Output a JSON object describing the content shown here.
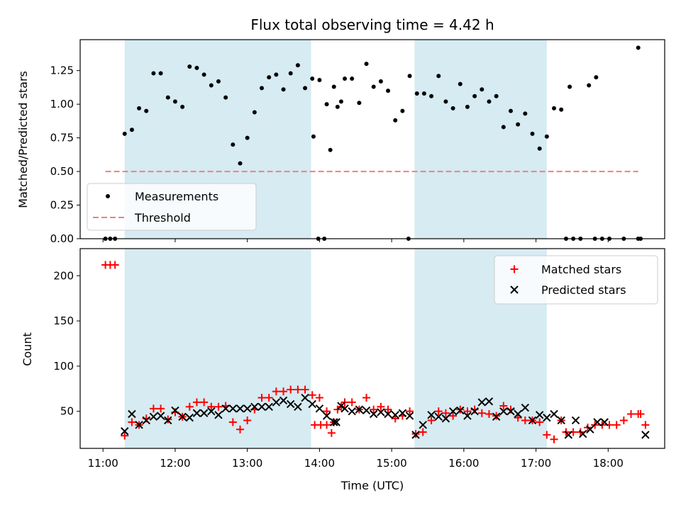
{
  "chart_data": [
    {
      "type": "scatter",
      "title": "Flux total observing time = 4.42 h",
      "xlabel": "",
      "ylabel": "Matched/Predicted stars",
      "xlim": [
        "10:41",
        "18:47"
      ],
      "ylim": [
        0,
        1.48
      ],
      "xticks": [
        "11:00",
        "12:00",
        "13:00",
        "14:00",
        "15:00",
        "16:00",
        "17:00",
        "18:00"
      ],
      "yticks": [
        "0.00",
        "0.25",
        "0.50",
        "0.75",
        "1.00",
        "1.25"
      ],
      "yticks_values": [
        0,
        0.25,
        0.5,
        0.75,
        1.0,
        1.25
      ],
      "grid": false,
      "legend_position": "lower-left",
      "shaded_intervals": [
        [
          "11:18",
          "13:53"
        ],
        [
          "15:19",
          "17:09"
        ]
      ],
      "threshold": {
        "name": "Threshold",
        "value": 0.5,
        "x_range": [
          "11:02",
          "18:25"
        ],
        "color": "#f08080"
      },
      "series": [
        {
          "name": "Measurements",
          "color": "#000000",
          "points": [
            [
              "11:02",
              0
            ],
            [
              "11:06",
              0
            ],
            [
              "11:10",
              0
            ],
            [
              "11:18",
              0.78
            ],
            [
              "11:24",
              0.81
            ],
            [
              "11:30",
              0.97
            ],
            [
              "11:36",
              0.95
            ],
            [
              "11:42",
              1.23
            ],
            [
              "11:48",
              1.23
            ],
            [
              "11:54",
              1.05
            ],
            [
              "12:00",
              1.02
            ],
            [
              "12:06",
              0.98
            ],
            [
              "12:12",
              1.28
            ],
            [
              "12:18",
              1.27
            ],
            [
              "12:24",
              1.22
            ],
            [
              "12:30",
              1.14
            ],
            [
              "12:36",
              1.17
            ],
            [
              "12:42",
              1.05
            ],
            [
              "12:48",
              0.7
            ],
            [
              "12:54",
              0.56
            ],
            [
              "13:00",
              0.75
            ],
            [
              "13:06",
              0.94
            ],
            [
              "13:12",
              1.12
            ],
            [
              "13:18",
              1.2
            ],
            [
              "13:24",
              1.22
            ],
            [
              "13:30",
              1.11
            ],
            [
              "13:36",
              1.23
            ],
            [
              "13:42",
              1.29
            ],
            [
              "13:48",
              1.12
            ],
            [
              "13:54",
              1.19
            ],
            [
              "14:00",
              1.18
            ],
            [
              "14:06",
              1.0
            ],
            [
              "14:12",
              1.13
            ],
            [
              "14:18",
              1.02
            ],
            [
              "13:55",
              0.76
            ],
            [
              "13:59",
              0
            ],
            [
              "14:04",
              0
            ],
            [
              "14:09",
              0.66
            ],
            [
              "14:15",
              0.98
            ],
            [
              "14:21",
              1.19
            ],
            [
              "14:27",
              1.19
            ],
            [
              "14:33",
              1.01
            ],
            [
              "14:39",
              1.3
            ],
            [
              "14:45",
              1.13
            ],
            [
              "14:51",
              1.17
            ],
            [
              "14:57",
              1.1
            ],
            [
              "15:03",
              0.88
            ],
            [
              "15:09",
              0.95
            ],
            [
              "15:15",
              1.21
            ],
            [
              "15:21",
              1.08
            ],
            [
              "15:14",
              0
            ],
            [
              "15:27",
              1.08
            ],
            [
              "15:33",
              1.06
            ],
            [
              "15:39",
              1.21
            ],
            [
              "15:45",
              1.02
            ],
            [
              "15:51",
              0.97
            ],
            [
              "15:57",
              1.15
            ],
            [
              "16:03",
              0.98
            ],
            [
              "16:09",
              1.06
            ],
            [
              "16:15",
              1.11
            ],
            [
              "16:21",
              1.02
            ],
            [
              "16:27",
              1.06
            ],
            [
              "16:33",
              0.83
            ],
            [
              "16:39",
              0.95
            ],
            [
              "16:45",
              0.85
            ],
            [
              "16:51",
              0.93
            ],
            [
              "16:57",
              0.78
            ],
            [
              "17:03",
              0.67
            ],
            [
              "17:09",
              0.76
            ],
            [
              "17:15",
              0.97
            ],
            [
              "17:21",
              0.96
            ],
            [
              "17:25",
              0
            ],
            [
              "17:31",
              0
            ],
            [
              "17:37",
              0
            ],
            [
              "17:49",
              0
            ],
            [
              "17:55",
              0
            ],
            [
              "18:01",
              0
            ],
            [
              "18:13",
              0
            ],
            [
              "18:25",
              0
            ],
            [
              "18:27",
              0
            ],
            [
              "17:28",
              1.13
            ],
            [
              "17:44",
              1.14
            ],
            [
              "17:50",
              1.2
            ],
            [
              "18:25",
              1.42
            ]
          ]
        }
      ]
    },
    {
      "type": "scatter",
      "title": "",
      "xlabel": "Time (UTC)",
      "ylabel": "Count",
      "xlim": [
        "10:41",
        "18:47"
      ],
      "ylim": [
        9,
        230
      ],
      "xticks": [
        "11:00",
        "12:00",
        "13:00",
        "14:00",
        "15:00",
        "16:00",
        "17:00",
        "18:00"
      ],
      "yticks": [
        "50",
        "100",
        "150",
        "200"
      ],
      "yticks_values": [
        50,
        100,
        150,
        200
      ],
      "grid": false,
      "legend_position": "upper-right",
      "shaded_intervals": [
        [
          "11:18",
          "13:53"
        ],
        [
          "15:19",
          "17:09"
        ]
      ],
      "series": [
        {
          "name": "Matched stars",
          "color": "#ff0000",
          "marker": "plus",
          "points": [
            [
              "11:02",
              212
            ],
            [
              "11:06",
              212
            ],
            [
              "11:10",
              212
            ],
            [
              "11:18",
              23
            ],
            [
              "11:24",
              38
            ],
            [
              "11:30",
              35
            ],
            [
              "11:36",
              42
            ],
            [
              "11:42",
              53
            ],
            [
              "11:48",
              53
            ],
            [
              "11:54",
              41
            ],
            [
              "12:00",
              49
            ],
            [
              "12:06",
              44
            ],
            [
              "12:12",
              55
            ],
            [
              "12:18",
              60
            ],
            [
              "12:24",
              60
            ],
            [
              "12:30",
              55
            ],
            [
              "12:36",
              55
            ],
            [
              "12:42",
              56
            ],
            [
              "12:48",
              38
            ],
            [
              "12:54",
              30
            ],
            [
              "13:00",
              40
            ],
            [
              "13:06",
              52
            ],
            [
              "13:12",
              65
            ],
            [
              "13:18",
              65
            ],
            [
              "13:24",
              72
            ],
            [
              "13:30",
              72
            ],
            [
              "13:36",
              74
            ],
            [
              "13:42",
              74
            ],
            [
              "13:48",
              74
            ],
            [
              "13:54",
              68
            ],
            [
              "14:00",
              65
            ],
            [
              "14:06",
              50
            ],
            [
              "14:12",
              38
            ],
            [
              "14:18",
              55
            ],
            [
              "13:56",
              35
            ],
            [
              "14:01",
              35
            ],
            [
              "14:06",
              35
            ],
            [
              "14:10",
              26
            ],
            [
              "14:15",
              52
            ],
            [
              "14:21",
              60
            ],
            [
              "14:27",
              60
            ],
            [
              "14:33",
              52
            ],
            [
              "14:39",
              65
            ],
            [
              "14:45",
              52
            ],
            [
              "14:51",
              55
            ],
            [
              "14:57",
              52
            ],
            [
              "15:03",
              42
            ],
            [
              "15:09",
              45
            ],
            [
              "15:15",
              50
            ],
            [
              "15:20",
              25
            ],
            [
              "15:26",
              27
            ],
            [
              "15:33",
              40
            ],
            [
              "15:39",
              50
            ],
            [
              "15:45",
              48
            ],
            [
              "15:51",
              45
            ],
            [
              "15:57",
              52
            ],
            [
              "16:03",
              50
            ],
            [
              "16:09",
              52
            ],
            [
              "16:15",
              48
            ],
            [
              "16:21",
              47
            ],
            [
              "16:27",
              45
            ],
            [
              "16:33",
              56
            ],
            [
              "16:39",
              52
            ],
            [
              "16:45",
              43
            ],
            [
              "16:51",
              40
            ],
            [
              "16:57",
              40
            ],
            [
              "17:03",
              38
            ],
            [
              "17:09",
              24
            ],
            [
              "17:15",
              19
            ],
            [
              "17:21",
              40
            ],
            [
              "17:25",
              27
            ],
            [
              "17:31",
              27
            ],
            [
              "17:37",
              27
            ],
            [
              "17:43",
              32
            ],
            [
              "17:49",
              35
            ],
            [
              "17:55",
              35
            ],
            [
              "18:01",
              35
            ],
            [
              "18:07",
              35
            ],
            [
              "18:13",
              40
            ],
            [
              "18:19",
              47
            ],
            [
              "18:25",
              47
            ],
            [
              "18:27",
              47
            ],
            [
              "18:31",
              35
            ]
          ]
        },
        {
          "name": "Predicted stars",
          "color": "#000000",
          "marker": "x",
          "points": [
            [
              "11:18",
              28
            ],
            [
              "11:24",
              47
            ],
            [
              "11:30",
              35
            ],
            [
              "11:36",
              40
            ],
            [
              "11:42",
              44
            ],
            [
              "11:48",
              45
            ],
            [
              "11:54",
              40
            ],
            [
              "12:00",
              51
            ],
            [
              "12:06",
              44
            ],
            [
              "12:12",
              43
            ],
            [
              "12:18",
              48
            ],
            [
              "12:24",
              48
            ],
            [
              "12:30",
              50
            ],
            [
              "12:36",
              46
            ],
            [
              "12:42",
              53
            ],
            [
              "12:48",
              53
            ],
            [
              "12:54",
              53
            ],
            [
              "13:00",
              53
            ],
            [
              "13:06",
              55
            ],
            [
              "13:12",
              55
            ],
            [
              "13:18",
              55
            ],
            [
              "13:24",
              60
            ],
            [
              "13:30",
              62
            ],
            [
              "13:36",
              58
            ],
            [
              "13:42",
              55
            ],
            [
              "13:48",
              65
            ],
            [
              "13:54",
              58
            ],
            [
              "14:00",
              53
            ],
            [
              "14:06",
              45
            ],
            [
              "14:12",
              38
            ],
            [
              "14:18",
              56
            ],
            [
              "14:14",
              38
            ],
            [
              "14:21",
              53
            ],
            [
              "14:27",
              50
            ],
            [
              "14:33",
              52
            ],
            [
              "14:39",
              51
            ],
            [
              "14:45",
              47
            ],
            [
              "14:51",
              49
            ],
            [
              "14:57",
              47
            ],
            [
              "15:03",
              46
            ],
            [
              "15:09",
              48
            ],
            [
              "15:15",
              45
            ],
            [
              "15:20",
              24
            ],
            [
              "15:26",
              35
            ],
            [
              "15:33",
              46
            ],
            [
              "15:39",
              44
            ],
            [
              "15:45",
              42
            ],
            [
              "15:51",
              50
            ],
            [
              "15:57",
              51
            ],
            [
              "16:03",
              45
            ],
            [
              "16:09",
              50
            ],
            [
              "16:15",
              60
            ],
            [
              "16:21",
              61
            ],
            [
              "16:27",
              44
            ],
            [
              "16:33",
              50
            ],
            [
              "16:39",
              50
            ],
            [
              "16:45",
              47
            ],
            [
              "16:51",
              54
            ],
            [
              "16:57",
              40
            ],
            [
              "17:03",
              46
            ],
            [
              "17:09",
              43
            ],
            [
              "17:15",
              47
            ],
            [
              "17:21",
              40
            ],
            [
              "17:27",
              24
            ],
            [
              "17:33",
              40
            ],
            [
              "17:39",
              25
            ],
            [
              "17:45",
              30
            ],
            [
              "17:51",
              38
            ],
            [
              "17:57",
              38
            ],
            [
              "18:31",
              24
            ]
          ]
        }
      ]
    }
  ]
}
